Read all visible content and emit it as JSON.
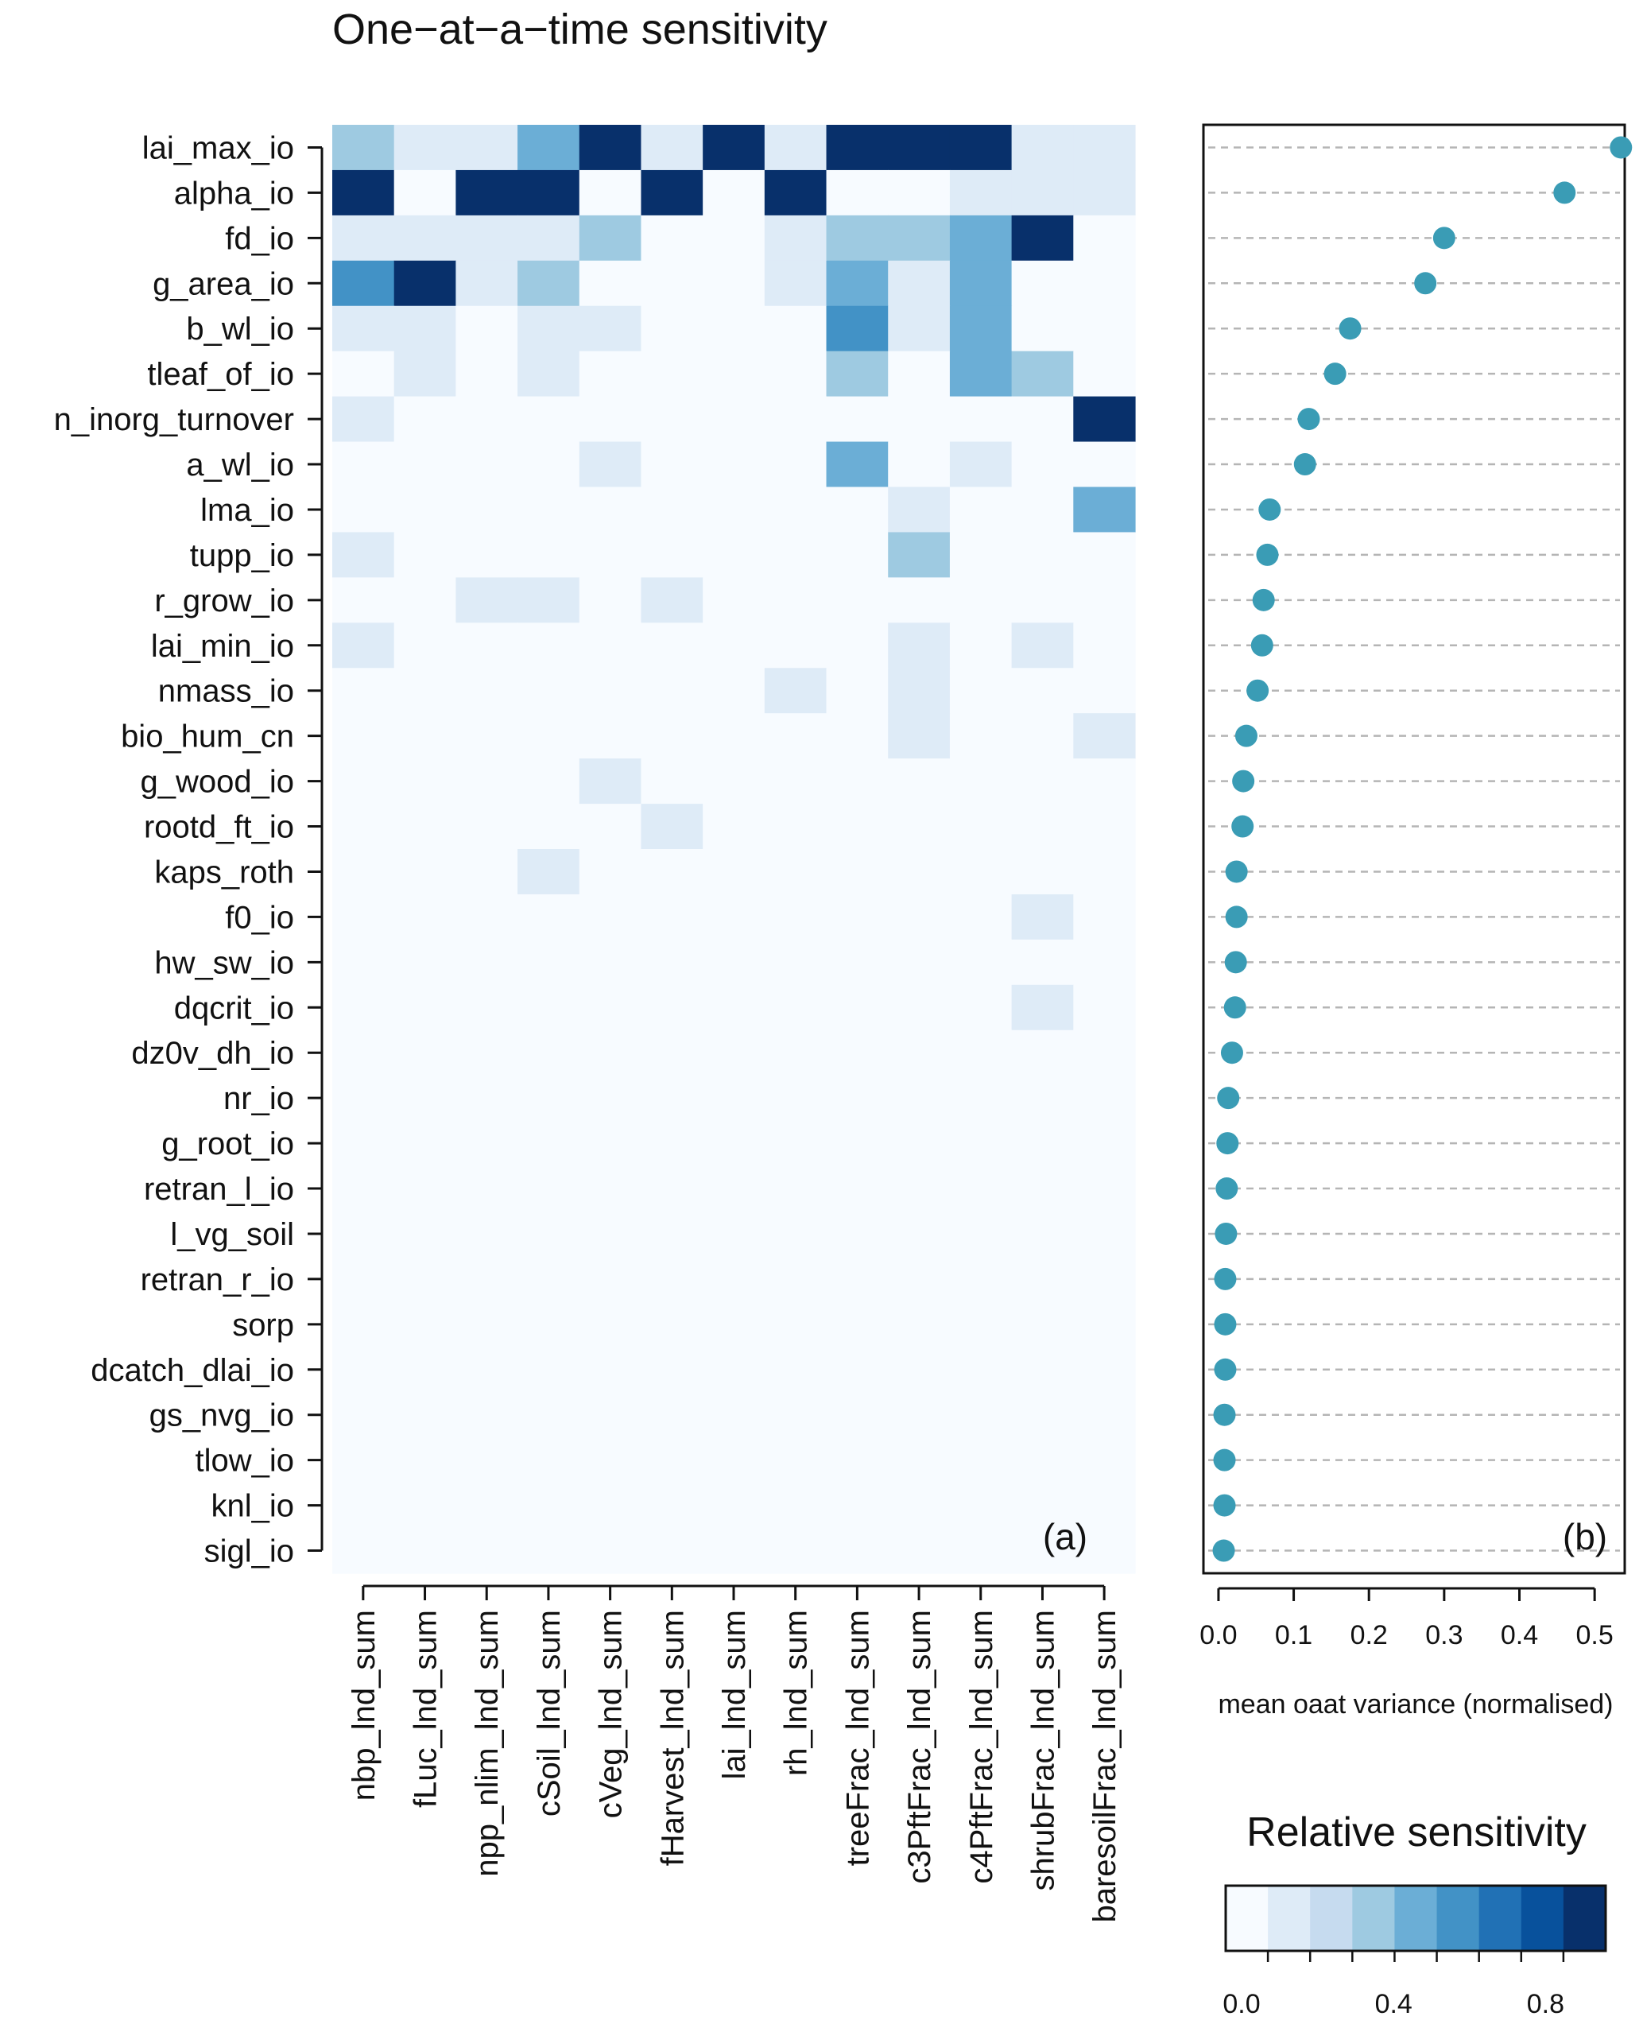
{
  "chart_data": [
    {
      "type": "heatmap",
      "title": "One−at−a−time sensitivity",
      "panel_label": "(a)",
      "rows": [
        "lai_max_io",
        "alpha_io",
        "fd_io",
        "g_area_io",
        "b_wl_io",
        "tleaf_of_io",
        "n_inorg_turnover",
        "a_wl_io",
        "lma_io",
        "tupp_io",
        "r_grow_io",
        "lai_min_io",
        "nmass_io",
        "bio_hum_cn",
        "g_wood_io",
        "rootd_ft_io",
        "kaps_roth",
        "f0_io",
        "hw_sw_io",
        "dqcrit_io",
        "dz0v_dh_io",
        "nr_io",
        "g_root_io",
        "retran_l_io",
        "l_vg_soil",
        "retran_r_io",
        "sorp",
        "dcatch_dlai_io",
        "gs_nvg_io",
        "tlow_io",
        "knl_io",
        "sigl_io"
      ],
      "columns": [
        "nbp_lnd_sum",
        "fLuc_lnd_sum",
        "npp_nlim_lnd_sum",
        "cSoil_lnd_sum",
        "cVeg_lnd_sum",
        "fHarvest_lnd_sum",
        "lai_lnd_sum",
        "rh_lnd_sum",
        "treeFrac_lnd_sum",
        "c3PftFrac_lnd_sum",
        "c4PftFrac_lnd_sum",
        "shrubFrac_lnd_sum",
        "baresoilFrac_lnd_sum"
      ],
      "values": [
        [
          0.35,
          0.12,
          0.12,
          0.5,
          1.0,
          0.12,
          1.0,
          0.22,
          1.0,
          1.0,
          1.0,
          0.12,
          0.12
        ],
        [
          1.0,
          0.02,
          1.0,
          1.0,
          0.02,
          1.0,
          0.02,
          1.0,
          0.02,
          0.02,
          0.22,
          0.22,
          0.22
        ],
        [
          0.12,
          0.12,
          0.12,
          0.22,
          0.35,
          0.02,
          0.02,
          0.22,
          0.35,
          0.35,
          0.5,
          1.0,
          0.02
        ],
        [
          0.62,
          1.0,
          0.12,
          0.35,
          0.02,
          0.02,
          0.02,
          0.12,
          0.5,
          0.12,
          0.5,
          0.02,
          0.02
        ],
        [
          0.12,
          0.12,
          0.02,
          0.12,
          0.22,
          0.02,
          0.02,
          0.02,
          0.62,
          0.12,
          0.5,
          0.02,
          0.02
        ],
        [
          0.02,
          0.12,
          0.02,
          0.12,
          0.02,
          0.02,
          0.02,
          0.02,
          0.35,
          0.02,
          0.5,
          0.35,
          0.02
        ],
        [
          0.12,
          0.02,
          0.02,
          0.02,
          0.02,
          0.02,
          0.02,
          0.02,
          0.02,
          0.02,
          0.02,
          0.02,
          1.0
        ],
        [
          0.02,
          0.02,
          0.02,
          0.02,
          0.12,
          0.02,
          0.02,
          0.02,
          0.5,
          0.02,
          0.22,
          0.02,
          0.02
        ],
        [
          0.02,
          0.02,
          0.02,
          0.02,
          0.02,
          0.02,
          0.02,
          0.02,
          0.02,
          0.12,
          0.02,
          0.02,
          0.5
        ],
        [
          0.22,
          0.02,
          0.02,
          0.02,
          0.02,
          0.02,
          0.02,
          0.02,
          0.02,
          0.35,
          0.02,
          0.02,
          0.02
        ],
        [
          0.02,
          0.02,
          0.12,
          0.12,
          0.02,
          0.22,
          0.02,
          0.02,
          0.02,
          0.02,
          0.02,
          0.02,
          0.02
        ],
        [
          0.12,
          0.02,
          0.02,
          0.02,
          0.02,
          0.02,
          0.02,
          0.02,
          0.02,
          0.12,
          0.02,
          0.12,
          0.02
        ],
        [
          0.02,
          0.02,
          0.02,
          0.02,
          0.02,
          0.02,
          0.02,
          0.12,
          0.02,
          0.12,
          0.02,
          0.02,
          0.02
        ],
        [
          0.02,
          0.02,
          0.02,
          0.02,
          0.02,
          0.02,
          0.02,
          0.02,
          0.02,
          0.12,
          0.02,
          0.02,
          0.12
        ],
        [
          0.02,
          0.02,
          0.02,
          0.02,
          0.12,
          0.02,
          0.02,
          0.02,
          0.02,
          0.02,
          0.02,
          0.02,
          0.02
        ],
        [
          0.02,
          0.02,
          0.02,
          0.02,
          0.02,
          0.12,
          0.02,
          0.02,
          0.02,
          0.02,
          0.02,
          0.02,
          0.02
        ],
        [
          0.02,
          0.02,
          0.02,
          0.22,
          0.02,
          0.02,
          0.02,
          0.02,
          0.02,
          0.02,
          0.02,
          0.02,
          0.02
        ],
        [
          0.02,
          0.02,
          0.02,
          0.02,
          0.02,
          0.02,
          0.02,
          0.02,
          0.02,
          0.02,
          0.02,
          0.12,
          0.02
        ],
        [
          0.02,
          0.02,
          0.02,
          0.02,
          0.02,
          0.02,
          0.02,
          0.02,
          0.02,
          0.02,
          0.02,
          0.02,
          0.02
        ],
        [
          0.02,
          0.02,
          0.02,
          0.02,
          0.02,
          0.02,
          0.02,
          0.02,
          0.02,
          0.02,
          0.02,
          0.12,
          0.02
        ],
        [
          0.02,
          0.02,
          0.02,
          0.02,
          0.02,
          0.02,
          0.02,
          0.02,
          0.02,
          0.02,
          0.02,
          0.02,
          0.02
        ],
        [
          0.02,
          0.02,
          0.02,
          0.02,
          0.02,
          0.02,
          0.02,
          0.02,
          0.02,
          0.02,
          0.02,
          0.02,
          0.02
        ],
        [
          0.02,
          0.02,
          0.02,
          0.02,
          0.02,
          0.02,
          0.02,
          0.02,
          0.02,
          0.02,
          0.02,
          0.02,
          0.02
        ],
        [
          0.02,
          0.02,
          0.02,
          0.02,
          0.02,
          0.02,
          0.02,
          0.02,
          0.02,
          0.02,
          0.02,
          0.02,
          0.02
        ],
        [
          0.02,
          0.02,
          0.02,
          0.02,
          0.02,
          0.02,
          0.02,
          0.02,
          0.02,
          0.02,
          0.02,
          0.02,
          0.02
        ],
        [
          0.02,
          0.02,
          0.02,
          0.02,
          0.02,
          0.02,
          0.02,
          0.02,
          0.02,
          0.02,
          0.02,
          0.02,
          0.02
        ],
        [
          0.02,
          0.02,
          0.02,
          0.02,
          0.02,
          0.02,
          0.02,
          0.02,
          0.02,
          0.02,
          0.02,
          0.02,
          0.02
        ],
        [
          0.02,
          0.02,
          0.02,
          0.02,
          0.02,
          0.02,
          0.02,
          0.02,
          0.02,
          0.02,
          0.02,
          0.02,
          0.02
        ],
        [
          0.02,
          0.02,
          0.02,
          0.02,
          0.02,
          0.02,
          0.02,
          0.02,
          0.02,
          0.02,
          0.02,
          0.02,
          0.02
        ],
        [
          0.02,
          0.02,
          0.02,
          0.02,
          0.02,
          0.02,
          0.02,
          0.02,
          0.02,
          0.02,
          0.02,
          0.02,
          0.02
        ],
        [
          0.02,
          0.02,
          0.02,
          0.02,
          0.02,
          0.02,
          0.02,
          0.02,
          0.02,
          0.02,
          0.02,
          0.02,
          0.02
        ],
        [
          0.02,
          0.02,
          0.02,
          0.02,
          0.02,
          0.02,
          0.02,
          0.02,
          0.02,
          0.02,
          0.02,
          0.02,
          0.02
        ]
      ],
      "color_scale": {
        "title": "Relative sensitivity",
        "range": [
          0,
          1
        ],
        "colors": [
          "#f7fbff",
          "#deebf7",
          "#c6dbef",
          "#9ecae1",
          "#6baed6",
          "#4292c6",
          "#2171b5",
          "#08519c",
          "#08306b"
        ],
        "ticks": [
          0.0,
          0.4,
          0.8
        ],
        "tick_labels": [
          "0.0",
          "0.4",
          "0.8"
        ]
      }
    },
    {
      "type": "scatter",
      "panel_label": "(b)",
      "xlabel": "mean oaat variance (normalised)",
      "xlim": [
        -0.02,
        0.54
      ],
      "xticks": [
        0.0,
        0.1,
        0.2,
        0.3,
        0.4,
        0.5
      ],
      "xtick_labels": [
        "0.0",
        "0.1",
        "0.2",
        "0.3",
        "0.4",
        "0.5"
      ],
      "grid": "horizontal dashed",
      "point_color": "#3a9cb5",
      "values": [
        0.535,
        0.46,
        0.3,
        0.275,
        0.175,
        0.155,
        0.12,
        0.115,
        0.068,
        0.065,
        0.06,
        0.058,
        0.052,
        0.037,
        0.033,
        0.032,
        0.024,
        0.024,
        0.023,
        0.022,
        0.018,
        0.013,
        0.012,
        0.011,
        0.01,
        0.009,
        0.009,
        0.009,
        0.008,
        0.008,
        0.008,
        0.007
      ]
    }
  ]
}
